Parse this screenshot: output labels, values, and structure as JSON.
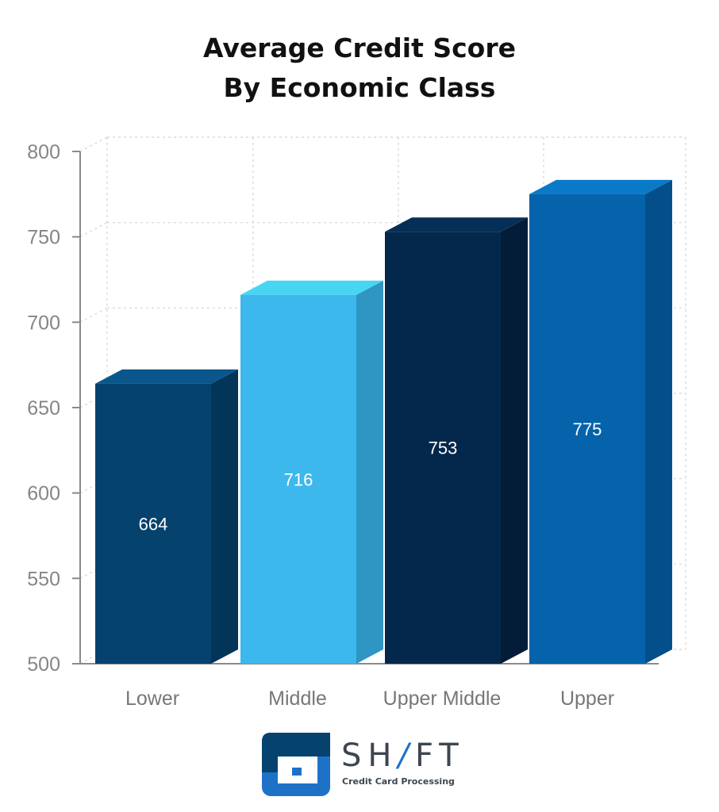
{
  "chart_data": {
    "type": "bar",
    "title_lines": [
      "Average Credit Score",
      "By Economic Class"
    ],
    "categories": [
      "Lower",
      "Middle",
      "Upper Middle",
      "Upper"
    ],
    "values": [
      664,
      716,
      753,
      775
    ],
    "value_labels": [
      "664",
      "716",
      "753",
      "775"
    ],
    "ylim": [
      500,
      800
    ],
    "yticks": [
      500,
      550,
      600,
      650,
      700,
      750,
      800
    ],
    "ytick_labels": [
      "500",
      "550",
      "600",
      "650",
      "700",
      "750",
      "800"
    ],
    "grid": true,
    "style": "3d",
    "bar_colors": [
      {
        "front": "#05426e",
        "top": "#0b568c",
        "side": "#033559"
      },
      {
        "front": "#3db8ec",
        "top": "#46d6f3",
        "side": "#2f95c3"
      },
      {
        "front": "#04284b",
        "top": "#062f57",
        "side": "#031d38"
      },
      {
        "front": "#0563ab",
        "top": "#0a79c8",
        "side": "#044f89"
      }
    ],
    "grid_color": "#d4d4d4",
    "axis_color": "#8a8a8a"
  },
  "logo": {
    "word_before": "SH",
    "word_slash": "/",
    "word_after": "FT",
    "tagline": "Credit Card Processing",
    "colors": {
      "primary": "#05426e",
      "accent": "#1d72c8"
    }
  }
}
